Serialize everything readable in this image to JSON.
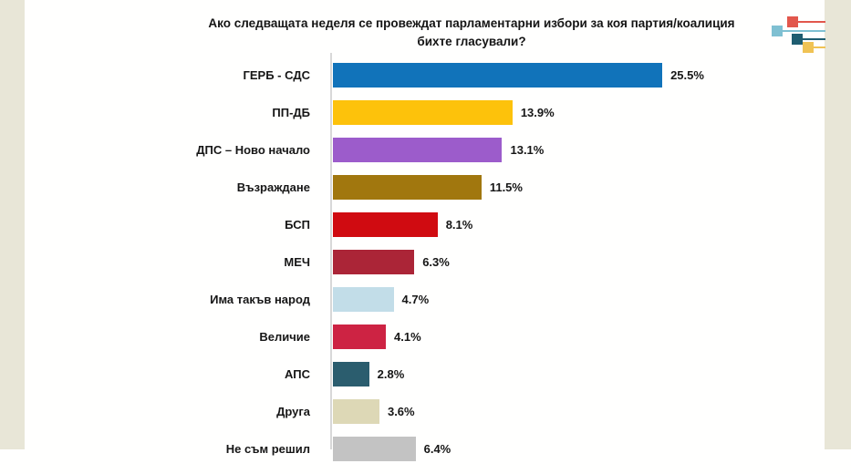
{
  "title_line1": "Ако следващата неделя се провеждат парламентарни избори за коя партия/коалиция",
  "title_line2": "бихте гласували?",
  "chart_data": {
    "type": "bar",
    "orientation": "horizontal",
    "title": "Ако следващата неделя се провеждат парламентарни избори за коя партия/коалиция бихте гласували?",
    "unit": "%",
    "xlim": [
      0,
      26.5
    ],
    "grid": false,
    "legend": false,
    "categories": [
      "ГЕРБ - СДС",
      "ПП-ДБ",
      "ДПС – Ново начало",
      "Възраждане",
      "БСП",
      "МЕЧ",
      "Има такъв народ",
      "Величие",
      "АПС",
      "Друга",
      "Не съм решил"
    ],
    "values": [
      25.5,
      13.9,
      13.1,
      11.5,
      8.1,
      6.3,
      4.7,
      4.1,
      2.8,
      3.6,
      6.4
    ],
    "display_values": [
      "25.5%",
      "13.9%",
      "13.1%",
      "11.5%",
      "8.1%",
      "6.3%",
      "4.7%",
      "4.1%",
      "2.8%",
      "3.6%",
      "6.4%"
    ],
    "bar_colors": [
      "#1173ba",
      "#fdc20b",
      "#9c5ccb",
      "#a1770e",
      "#d00b11",
      "#ab2537",
      "#c2dde8",
      "#cd2343",
      "#2b5d6e",
      "#ddd8b6",
      "#c3c3c3"
    ]
  },
  "logo": {
    "square_colors": [
      "#e2574c",
      "#7fc0d2",
      "#1f5d70",
      "#f0c354"
    ]
  },
  "colors": {
    "page_margin": "#e8e6d7",
    "background": "#fffffe",
    "axis_line": "#d8d8d8",
    "text": "#161616"
  }
}
